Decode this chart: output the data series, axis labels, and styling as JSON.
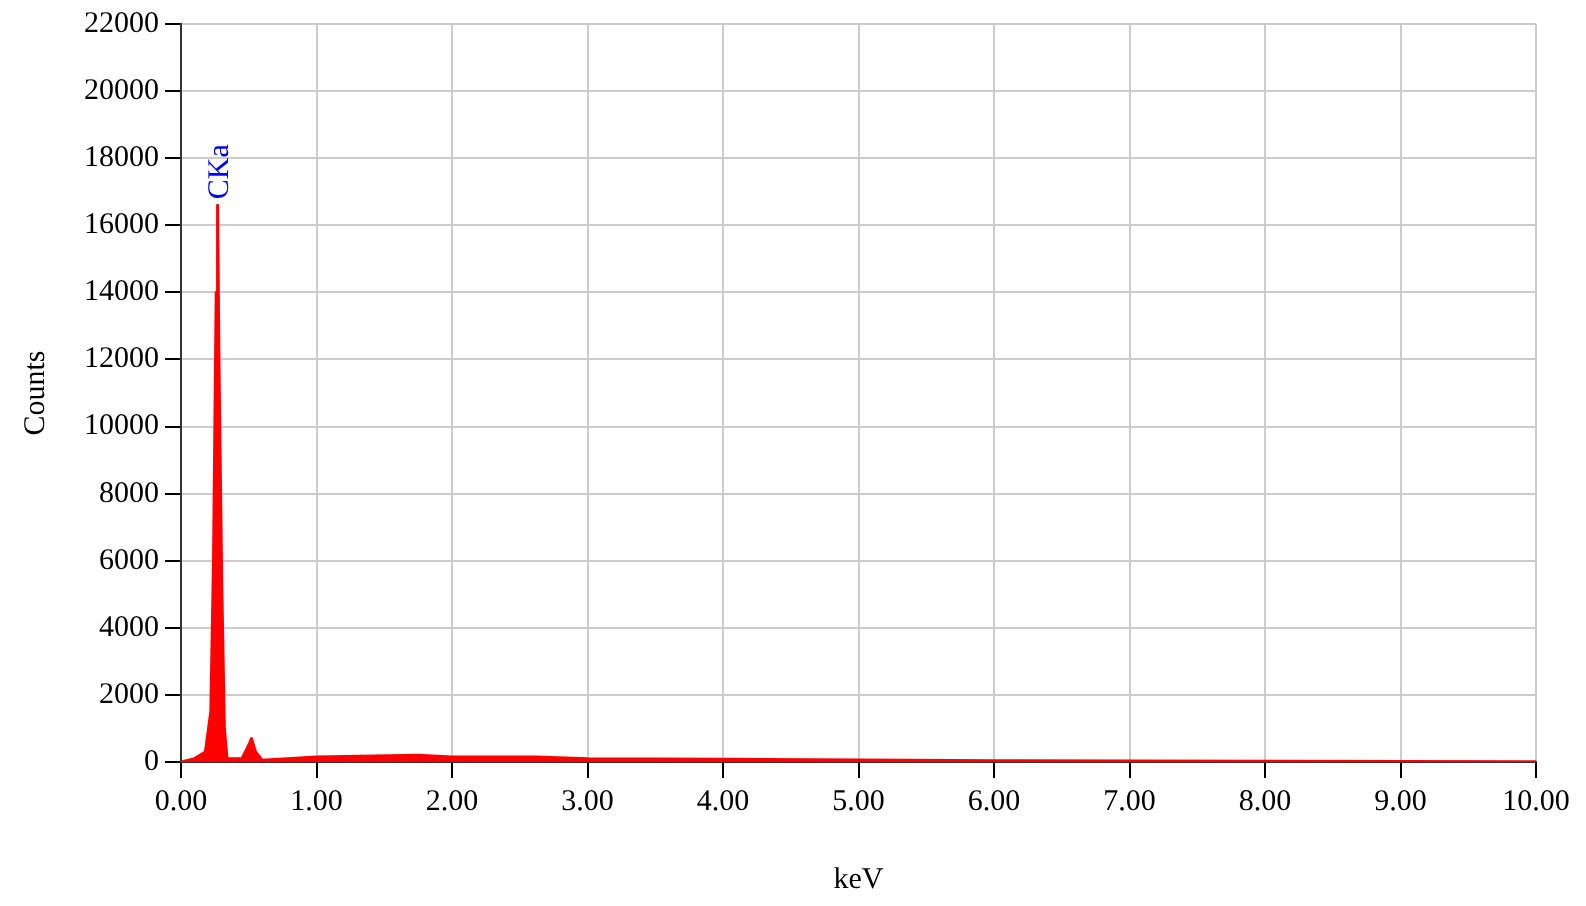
{
  "chart_data": {
    "type": "area",
    "xlabel": "keV",
    "ylabel": "Counts",
    "x": [
      0,
      0.1,
      0.18,
      0.22,
      0.24,
      0.26,
      0.27,
      0.28,
      0.3,
      0.32,
      0.34,
      0.45,
      0.5,
      0.52,
      0.55,
      0.6,
      1.0,
      1.75,
      2.0,
      2.62,
      3.0,
      4.0,
      5.0,
      6.0,
      7.0,
      8.0,
      9.0,
      10.0
    ],
    "series": [
      {
        "color": "#ff0000",
        "values": [
          0,
          100,
          300,
          1500,
          6000,
          14000,
          16600,
          12000,
          5500,
          1000,
          100,
          100,
          500,
          700,
          300,
          50,
          150,
          200,
          150,
          150,
          100,
          80,
          60,
          40,
          30,
          20,
          15,
          10
        ]
      }
    ],
    "annotations": [
      {
        "text": "CKa",
        "x": 0.27,
        "y": 16600
      }
    ],
    "xlim": [
      0,
      10
    ],
    "xticks": [
      {
        "value": 0,
        "label": "0.00"
      },
      {
        "value": 1,
        "label": "1.00"
      },
      {
        "value": 2,
        "label": "2.00"
      },
      {
        "value": 3,
        "label": "3.00"
      },
      {
        "value": 4,
        "label": "4.00"
      },
      {
        "value": 5,
        "label": "5.00"
      },
      {
        "value": 6,
        "label": "6.00"
      },
      {
        "value": 7,
        "label": "7.00"
      },
      {
        "value": 8,
        "label": "8.00"
      },
      {
        "value": 9,
        "label": "9.00"
      },
      {
        "value": 10,
        "label": "10.00"
      }
    ],
    "ylim": [
      0,
      22000
    ],
    "yticks": [
      0,
      2000,
      4000,
      6000,
      8000,
      10000,
      12000,
      14000,
      16000,
      18000,
      20000,
      22000
    ],
    "grid": true,
    "marker": "none"
  }
}
